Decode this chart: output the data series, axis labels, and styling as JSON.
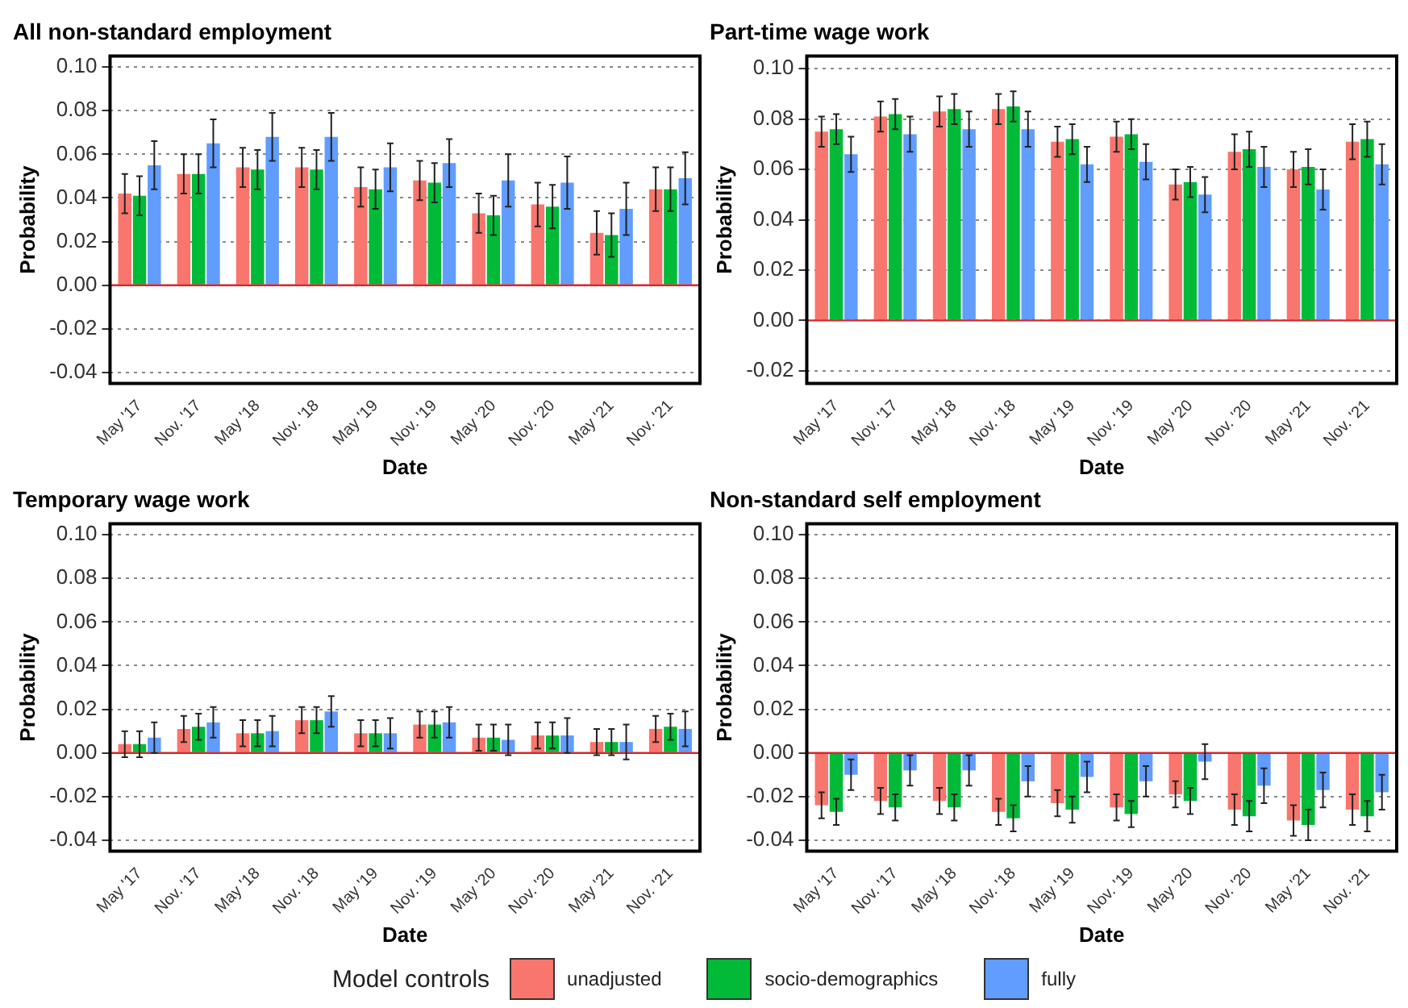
{
  "chart_data": [
    {
      "type": "bar",
      "title": "All non-standard employment",
      "legend": "bottom",
      "legend_title": "Model controls",
      "xlabel": "Date",
      "ylabel": "Probability",
      "categories": [
        "May '17",
        "Nov. '17",
        "May '18",
        "Nov. '18",
        "May '19",
        "Nov. '19",
        "May '20",
        "Nov. '20",
        "May '21",
        "Nov. '21"
      ],
      "ylim": [
        -0.045,
        0.105
      ],
      "yticks": [
        {
          "value": -0.04,
          "label": "-0.04"
        },
        {
          "value": -0.02,
          "label": "-0.02"
        },
        {
          "value": 0,
          "label": "0.00"
        },
        {
          "value": 0.02,
          "label": "0.02"
        },
        {
          "value": 0.04,
          "label": "0.04"
        },
        {
          "value": 0.06,
          "label": "0.06"
        },
        {
          "value": 0.08,
          "label": "0.08"
        },
        {
          "value": 0.1,
          "label": "0.10"
        }
      ],
      "grid": "y",
      "ref_lines": [
        {
          "axis": "y",
          "value": 0,
          "color": "#d62728"
        }
      ],
      "series": [
        {
          "name": "unadjusted",
          "color": "#f8766d",
          "values": [
            0.042,
            0.051,
            0.054,
            0.054,
            0.045,
            0.048,
            0.033,
            0.037,
            0.024,
            0.044
          ],
          "errors": [
            0.009,
            0.009,
            0.009,
            0.009,
            0.009,
            0.009,
            0.009,
            0.01,
            0.01,
            0.01
          ]
        },
        {
          "name": "socio-demographics",
          "color": "#00ba38",
          "values": [
            0.041,
            0.051,
            0.053,
            0.053,
            0.044,
            0.047,
            0.032,
            0.036,
            0.023,
            0.044
          ],
          "errors": [
            0.009,
            0.009,
            0.009,
            0.009,
            0.009,
            0.009,
            0.009,
            0.01,
            0.01,
            0.01
          ]
        },
        {
          "name": "fully",
          "color": "#619cff",
          "values": [
            0.055,
            0.065,
            0.068,
            0.068,
            0.054,
            0.056,
            0.048,
            0.047,
            0.035,
            0.049
          ],
          "errors": [
            0.011,
            0.011,
            0.011,
            0.011,
            0.011,
            0.011,
            0.012,
            0.012,
            0.012,
            0.012
          ]
        }
      ]
    },
    {
      "type": "bar",
      "title": "Part-time wage work",
      "xlabel": "Date",
      "ylabel": "Probability",
      "categories": [
        "May '17",
        "Nov. '17",
        "May '18",
        "Nov. '18",
        "May '19",
        "Nov. '19",
        "May '20",
        "Nov. '20",
        "May '21",
        "Nov. '21"
      ],
      "ylim": [
        -0.025,
        0.105
      ],
      "yticks": [
        {
          "value": -0.02,
          "label": "-0.02"
        },
        {
          "value": 0,
          "label": "0.00"
        },
        {
          "value": 0.02,
          "label": "0.02"
        },
        {
          "value": 0.04,
          "label": "0.04"
        },
        {
          "value": 0.06,
          "label": "0.06"
        },
        {
          "value": 0.08,
          "label": "0.08"
        },
        {
          "value": 0.1,
          "label": "0.10"
        }
      ],
      "grid": "y",
      "ref_lines": [
        {
          "axis": "y",
          "value": 0,
          "color": "#d62728"
        }
      ],
      "series": [
        {
          "color": "#f8766d",
          "values": [
            0.075,
            0.081,
            0.083,
            0.084,
            0.071,
            0.073,
            0.054,
            0.067,
            0.06,
            0.071
          ],
          "errors": [
            0.006,
            0.006,
            0.006,
            0.006,
            0.006,
            0.006,
            0.006,
            0.007,
            0.007,
            0.007
          ]
        },
        {
          "color": "#00ba38",
          "values": [
            0.076,
            0.082,
            0.084,
            0.085,
            0.072,
            0.074,
            0.055,
            0.068,
            0.061,
            0.072
          ],
          "errors": [
            0.006,
            0.006,
            0.006,
            0.006,
            0.006,
            0.006,
            0.006,
            0.007,
            0.007,
            0.007
          ]
        },
        {
          "color": "#619cff",
          "values": [
            0.066,
            0.074,
            0.076,
            0.076,
            0.062,
            0.063,
            0.05,
            0.061,
            0.052,
            0.062
          ],
          "errors": [
            0.007,
            0.007,
            0.007,
            0.007,
            0.007,
            0.007,
            0.007,
            0.008,
            0.008,
            0.008
          ]
        }
      ]
    },
    {
      "type": "bar",
      "title": "Temporary wage work",
      "xlabel": "Date",
      "ylabel": "Probability",
      "categories": [
        "May '17",
        "Nov. '17",
        "May '18",
        "Nov. '18",
        "May '19",
        "Nov. '19",
        "May '20",
        "Nov. '20",
        "May '21",
        "Nov. '21"
      ],
      "ylim": [
        -0.045,
        0.105
      ],
      "yticks": [
        {
          "value": -0.04,
          "label": "-0.04"
        },
        {
          "value": -0.02,
          "label": "-0.02"
        },
        {
          "value": 0,
          "label": "0.00"
        },
        {
          "value": 0.02,
          "label": "0.02"
        },
        {
          "value": 0.04,
          "label": "0.04"
        },
        {
          "value": 0.06,
          "label": "0.06"
        },
        {
          "value": 0.08,
          "label": "0.08"
        },
        {
          "value": 0.1,
          "label": "0.10"
        }
      ],
      "grid": "y",
      "ref_lines": [
        {
          "axis": "y",
          "value": 0,
          "color": "#d62728"
        }
      ],
      "series": [
        {
          "color": "#f8766d",
          "values": [
            0.004,
            0.011,
            0.009,
            0.015,
            0.009,
            0.013,
            0.007,
            0.008,
            0.005,
            0.011
          ],
          "errors": [
            0.006,
            0.006,
            0.006,
            0.006,
            0.006,
            0.006,
            0.006,
            0.006,
            0.006,
            0.006
          ]
        },
        {
          "color": "#00ba38",
          "values": [
            0.004,
            0.012,
            0.009,
            0.015,
            0.009,
            0.013,
            0.007,
            0.008,
            0.005,
            0.012
          ],
          "errors": [
            0.006,
            0.006,
            0.006,
            0.006,
            0.006,
            0.006,
            0.006,
            0.006,
            0.006,
            0.006
          ]
        },
        {
          "color": "#619cff",
          "values": [
            0.007,
            0.014,
            0.01,
            0.019,
            0.009,
            0.014,
            0.006,
            0.008,
            0.005,
            0.011
          ],
          "errors": [
            0.007,
            0.007,
            0.007,
            0.007,
            0.007,
            0.007,
            0.007,
            0.008,
            0.008,
            0.008
          ]
        }
      ]
    },
    {
      "type": "bar",
      "title": "Non-standard self employment",
      "xlabel": "Date",
      "ylabel": "Probability",
      "categories": [
        "May '17",
        "Nov. '17",
        "May '18",
        "Nov. '18",
        "May '19",
        "Nov. '19",
        "May '20",
        "Nov. '20",
        "May '21",
        "Nov. '21"
      ],
      "ylim": [
        -0.045,
        0.105
      ],
      "yticks": [
        {
          "value": -0.04,
          "label": "-0.04"
        },
        {
          "value": -0.02,
          "label": "-0.02"
        },
        {
          "value": 0,
          "label": "0.00"
        },
        {
          "value": 0.02,
          "label": "0.02"
        },
        {
          "value": 0.04,
          "label": "0.04"
        },
        {
          "value": 0.06,
          "label": "0.06"
        },
        {
          "value": 0.08,
          "label": "0.08"
        },
        {
          "value": 0.1,
          "label": "0.10"
        }
      ],
      "grid": "y",
      "ref_lines": [
        {
          "axis": "y",
          "value": 0,
          "color": "#d62728"
        }
      ],
      "series": [
        {
          "color": "#f8766d",
          "values": [
            -0.024,
            -0.022,
            -0.022,
            -0.027,
            -0.023,
            -0.025,
            -0.019,
            -0.026,
            -0.031,
            -0.026
          ],
          "errors": [
            0.006,
            0.006,
            0.006,
            0.006,
            0.006,
            0.006,
            0.006,
            0.007,
            0.007,
            0.007
          ]
        },
        {
          "color": "#00ba38",
          "values": [
            -0.027,
            -0.025,
            -0.025,
            -0.03,
            -0.026,
            -0.028,
            -0.022,
            -0.029,
            -0.033,
            -0.029
          ],
          "errors": [
            0.006,
            0.006,
            0.006,
            0.006,
            0.006,
            0.006,
            0.006,
            0.007,
            0.007,
            0.007
          ]
        },
        {
          "color": "#619cff",
          "values": [
            -0.01,
            -0.008,
            -0.008,
            -0.013,
            -0.011,
            -0.013,
            -0.004,
            -0.015,
            -0.017,
            -0.018
          ],
          "errors": [
            0.007,
            0.007,
            0.007,
            0.007,
            0.007,
            0.007,
            0.008,
            0.008,
            0.008,
            0.008
          ]
        }
      ]
    }
  ]
}
